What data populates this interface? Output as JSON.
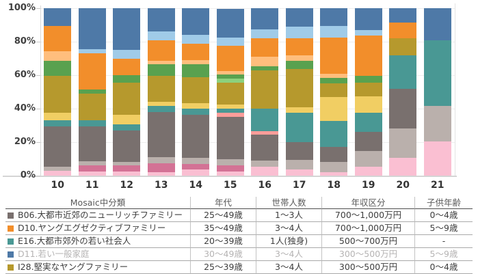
{
  "chart_data": {
    "type": "bar",
    "subtype": "100%-stacked-bar",
    "categories": [
      "10",
      "11",
      "12",
      "13",
      "14",
      "15",
      "16",
      "17",
      "18",
      "19",
      "20",
      "21"
    ],
    "yticks": [
      "100%",
      "80%",
      "60%",
      "40%",
      "20%",
      "0%"
    ],
    "ylim": [
      0,
      100
    ],
    "grid": true,
    "legend_position": "table-below-chart",
    "stack_order": "bottom-to-top",
    "series": [
      {
        "id": "pink",
        "label": "",
        "color": "#FABFD2",
        "values": [
          3,
          2.5,
          2.5,
          2,
          3.5,
          2.5,
          5.5,
          3.5,
          2,
          5.5,
          10.5,
          20.5
        ]
      },
      {
        "id": "magenta",
        "label": "",
        "color": "#D37295",
        "values": [
          0,
          3.5,
          3.5,
          5.5,
          3.5,
          3.5,
          0,
          0,
          0,
          0,
          0,
          0
        ]
      },
      {
        "id": "light-gray",
        "label": "",
        "color": "#BAB0AC",
        "values": [
          2.5,
          2.5,
          2,
          3.5,
          3.5,
          4,
          3.5,
          6,
          6,
          9,
          17.5,
          21
        ]
      },
      {
        "id": "B06",
        "label": "B06.大都市近郊のニューリッチファミリー",
        "color": "#79706E",
        "values": [
          24,
          21,
          19,
          27,
          26,
          25,
          15.5,
          10.5,
          9,
          11.5,
          24,
          0
        ]
      },
      {
        "id": "salmon",
        "label": "",
        "color": "#FF9D9A",
        "values": [
          0,
          0,
          0,
          0,
          0,
          2.5,
          2,
          0,
          0,
          0,
          0,
          0
        ]
      },
      {
        "id": "E16",
        "label": "E16.大都市郊外の若い社会人",
        "color": "#499894",
        "values": [
          3.5,
          3.5,
          3.5,
          3.5,
          3.5,
          2.5,
          13.5,
          17.5,
          15.5,
          11.5,
          20,
          39.5
        ]
      },
      {
        "id": "yellow",
        "label": "",
        "color": "#F1CE63",
        "values": [
          4.5,
          0,
          6,
          2.5,
          3.5,
          2.5,
          0,
          3.5,
          14.5,
          10,
          0,
          0
        ]
      },
      {
        "id": "I28",
        "label": "I28.堅実なヤングファミリー",
        "color": "#B6992D",
        "values": [
          22,
          16,
          19,
          15.5,
          15.5,
          13,
          23,
          22.5,
          8,
          8,
          10,
          0
        ]
      },
      {
        "id": "light-green",
        "label": "",
        "color": "#8CD17D",
        "values": [
          0,
          0,
          0,
          0,
          0,
          2.5,
          0,
          0,
          0,
          0,
          0,
          0
        ]
      },
      {
        "id": "green",
        "label": "",
        "color": "#59A14F",
        "values": [
          9,
          2.5,
          4.5,
          7,
          7.5,
          2.5,
          2.5,
          5,
          3.5,
          4,
          0,
          0
        ]
      },
      {
        "id": "peach",
        "label": "",
        "color": "#FFBE7D",
        "values": [
          6,
          0,
          0,
          2,
          2.5,
          2,
          5.5,
          3.5,
          2.5,
          0,
          0,
          0
        ]
      },
      {
        "id": "D10",
        "label": "D10.ヤングエグゼクティブファミリー",
        "color": "#F28E2B",
        "values": [
          15,
          21.5,
          10,
          12.5,
          10,
          15,
          11,
          10,
          21.5,
          24,
          9.5,
          0
        ]
      },
      {
        "id": "light-blue",
        "label": "",
        "color": "#A0CBE8",
        "values": [
          0,
          2.5,
          5,
          5,
          5,
          5,
          5.5,
          7,
          7,
          3.5,
          0,
          0
        ]
      },
      {
        "id": "D11",
        "label": "D11.若い一般家庭",
        "color": "#4E79A7",
        "values": [
          10.5,
          24.5,
          25,
          14,
          16,
          17,
          12.5,
          11,
          10.5,
          13,
          8.5,
          19
        ]
      }
    ]
  },
  "table": {
    "headers": [
      "Mosaic中分類",
      "年代",
      "世帯人数",
      "年収区分",
      "子供年齢"
    ],
    "rows": [
      {
        "swatch": "#79706E",
        "muted": false,
        "cells": [
          "B06.大都市近郊のニューリッチファミリー",
          "25～49歳",
          "1～3人",
          "700～1,000万円",
          "0～4歳"
        ]
      },
      {
        "swatch": "#F28E2B",
        "muted": false,
        "cells": [
          "D10.ヤングエグゼクティブファミリー",
          "35～49歳",
          "3～4人",
          "700～1,000万円",
          "5～9歳"
        ]
      },
      {
        "swatch": "#499894",
        "muted": false,
        "cells": [
          "E16.大都市郊外の若い社会人",
          "20～39歳",
          "1人(独身)",
          "500～700万円",
          "-"
        ]
      },
      {
        "swatch": "#4E79A7",
        "muted": true,
        "cells": [
          "D11.若い一般家庭",
          "30～49歳",
          "3～4人",
          "300～500万円",
          "5～9歳"
        ]
      },
      {
        "swatch": "#B6992D",
        "muted": false,
        "cells": [
          "I28.堅実なヤングファミリー",
          "25～39歳",
          "3～4人",
          "300～500万円",
          "0～4歳"
        ]
      }
    ]
  }
}
